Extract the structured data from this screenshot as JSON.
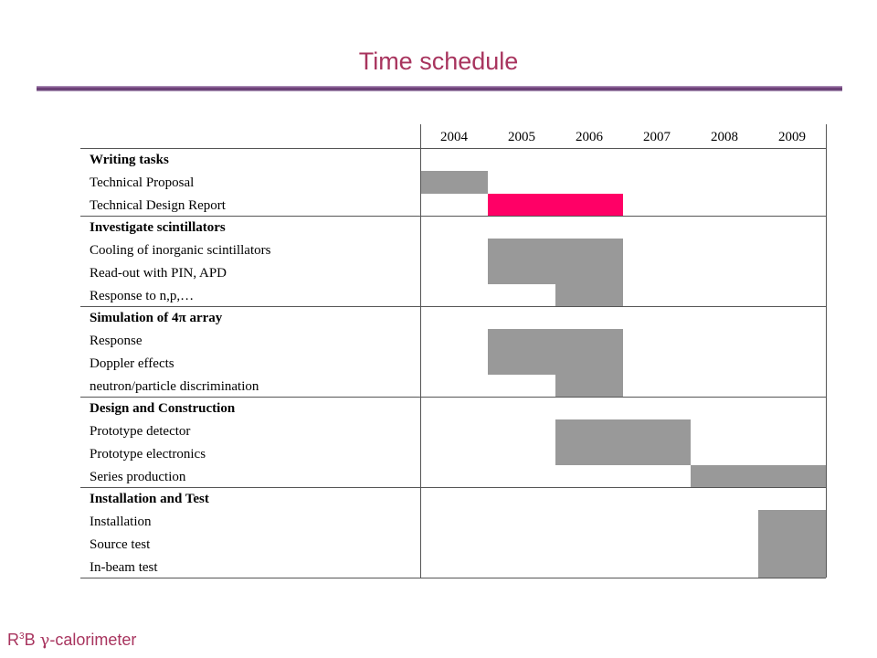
{
  "title": "Time schedule",
  "years": [
    "2004",
    "2005",
    "2006",
    "2007",
    "2008",
    "2009"
  ],
  "colors": {
    "bar": "#999999",
    "highlight": "#ff0066",
    "accent": "#a8345e"
  },
  "rows": [
    {
      "label": "Writing tasks",
      "bold": true,
      "section_start": true,
      "bars": []
    },
    {
      "label": "Technical Proposal",
      "bold": false,
      "bars": [
        {
          "from_year": "2004",
          "to_year": "2004"
        }
      ]
    },
    {
      "label": "Technical Design Report",
      "bold": false,
      "bars": [
        {
          "from_year": "2005",
          "to_year": "2006",
          "color": "highlight"
        }
      ]
    },
    {
      "label": "Investigate scintillators",
      "bold": true,
      "section_start": true,
      "bars": []
    },
    {
      "label": "Cooling of inorganic scintillators",
      "bold": false,
      "bars": [
        {
          "from_year": "2005",
          "to_year": "2006"
        }
      ]
    },
    {
      "label": "Read-out with PIN, APD",
      "bold": false,
      "bars": [
        {
          "from_year": "2005",
          "to_year": "2006"
        }
      ]
    },
    {
      "label": "Response to n,p,…",
      "bold": false,
      "bars": [
        {
          "from_year": "2006",
          "to_year": "2006"
        }
      ]
    },
    {
      "label": "Simulation of 4π array",
      "bold": true,
      "section_start": true,
      "bars": []
    },
    {
      "label": "Response",
      "bold": false,
      "bars": [
        {
          "from_year": "2005",
          "to_year": "2006"
        }
      ]
    },
    {
      "label": "Doppler effects",
      "bold": false,
      "bars": [
        {
          "from_year": "2005",
          "to_year": "2006"
        }
      ]
    },
    {
      "label": "neutron/particle discrimination",
      "bold": false,
      "bars": [
        {
          "from_year": "2006",
          "to_year": "2006"
        }
      ]
    },
    {
      "label": "Design and Construction",
      "bold": true,
      "section_start": true,
      "bars": []
    },
    {
      "label": "Prototype detector",
      "bold": false,
      "bars": [
        {
          "from_year": "2006",
          "to_year": "2007"
        }
      ]
    },
    {
      "label": "Prototype electronics",
      "bold": false,
      "bars": [
        {
          "from_year": "2006",
          "to_year": "2007"
        }
      ]
    },
    {
      "label": "Series production",
      "bold": false,
      "bars": [
        {
          "from_year": "2008",
          "to_year": "2009"
        }
      ]
    },
    {
      "label": "Installation and Test",
      "bold": true,
      "section_start": true,
      "bars": []
    },
    {
      "label": "Installation",
      "bold": false,
      "bars": [
        {
          "from_year": "2009",
          "to_year": "2009"
        }
      ]
    },
    {
      "label": "Source test",
      "bold": false,
      "bars": [
        {
          "from_year": "2009",
          "to_year": "2009"
        }
      ]
    },
    {
      "label": "In-beam test",
      "bold": false,
      "bars": [
        {
          "from_year": "2009",
          "to_year": "2009"
        }
      ]
    }
  ],
  "footer": {
    "prefix": "R",
    "superscript": "3",
    "middle": "B ",
    "gamma": "γ",
    "suffix": "-calorimeter"
  }
}
